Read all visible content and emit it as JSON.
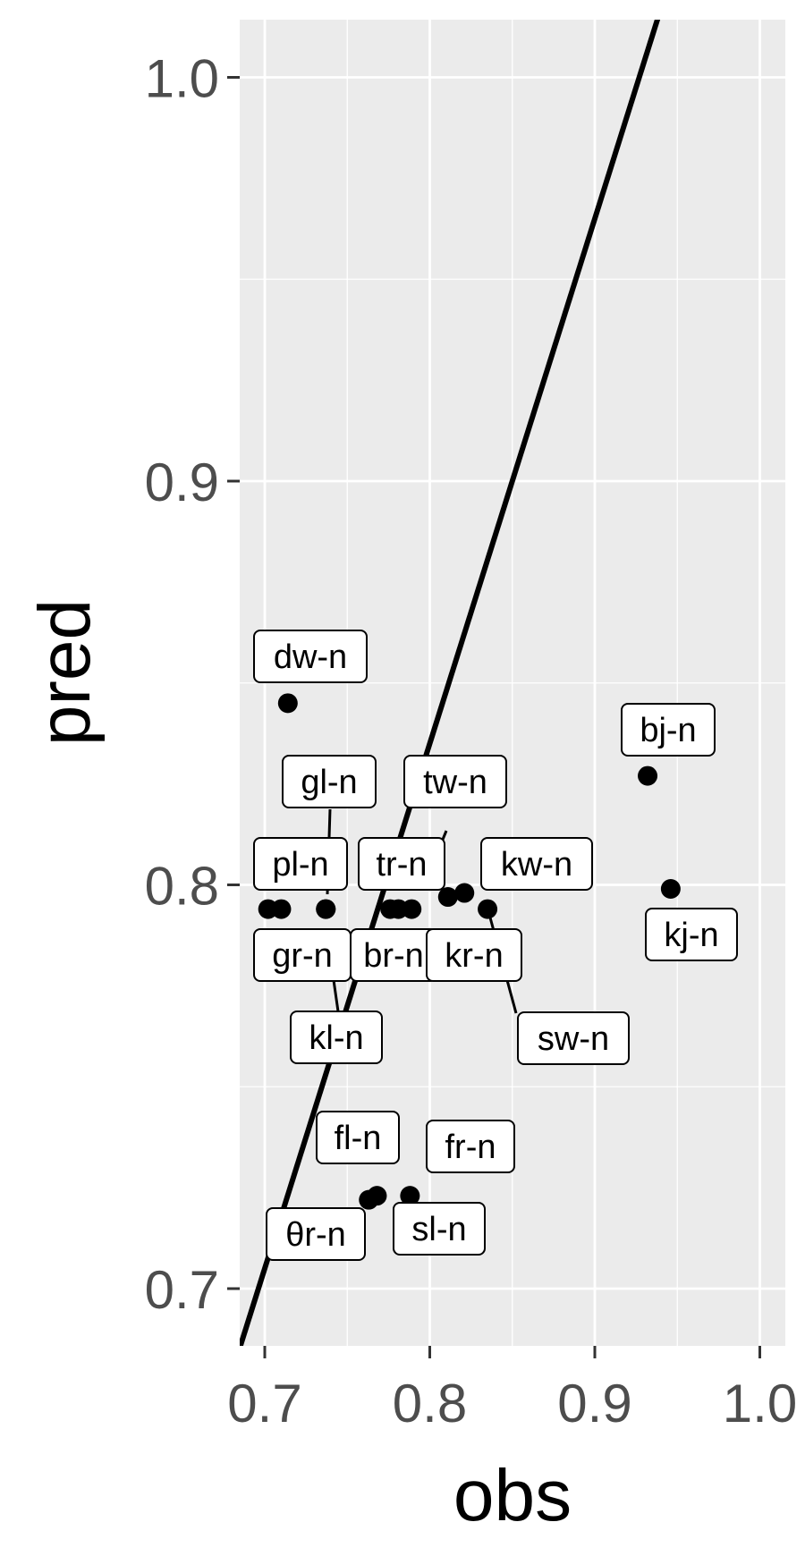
{
  "chart_data": {
    "type": "scatter",
    "xlabel": "obs",
    "ylabel": "pred",
    "xlim": [
      0.685,
      1.015
    ],
    "ylim": [
      0.686,
      1.015
    ],
    "x_ticks": [
      0.7,
      0.8,
      0.9,
      1.0
    ],
    "x_tick_labels": [
      "0.7",
      "0.8",
      "0.9",
      "1.0"
    ],
    "y_ticks": [
      0.7,
      0.8,
      0.9,
      1.0
    ],
    "y_tick_labels": [
      "0.7",
      "0.8",
      "0.9",
      "1.0"
    ],
    "grid": true,
    "panel_background": "#ebebeb",
    "grid_color": "#ffffff",
    "reference_line": {
      "slope": 1.3,
      "intercept": -0.205,
      "color": "#000000"
    },
    "points": [
      {
        "label": "dw-n",
        "x": 0.714,
        "y": 0.845
      },
      {
        "label": "bj-n",
        "x": 0.932,
        "y": 0.827
      },
      {
        "label": "kj-n",
        "x": 0.946,
        "y": 0.799
      },
      {
        "label": "kw-n",
        "x": 0.821,
        "y": 0.798
      },
      {
        "label": "sw-n",
        "x": 0.835,
        "y": 0.794
      },
      {
        "label": "tw-n",
        "x": 0.789,
        "y": 0.794
      },
      {
        "label": "tr-n",
        "x": 0.776,
        "y": 0.794
      },
      {
        "label": "gl-n",
        "x": 0.737,
        "y": 0.794
      },
      {
        "label": "kl-n",
        "x": 0.737,
        "y": 0.794
      },
      {
        "label": "pl-n",
        "x": 0.702,
        "y": 0.794
      },
      {
        "label": "gr-n",
        "x": 0.71,
        "y": 0.794
      },
      {
        "label": "br-n",
        "x": 0.781,
        "y": 0.794
      },
      {
        "label": "kr-n",
        "x": 0.811,
        "y": 0.797
      },
      {
        "label": "fl-n",
        "x": 0.763,
        "y": 0.722
      },
      {
        "label": "fr-n",
        "x": 0.788,
        "y": 0.723
      },
      {
        "label": "sl-n",
        "x": 0.768,
        "y": 0.723
      },
      {
        "label": "θr-n",
        "x": 0.715,
        "y": 0.714
      }
    ]
  }
}
